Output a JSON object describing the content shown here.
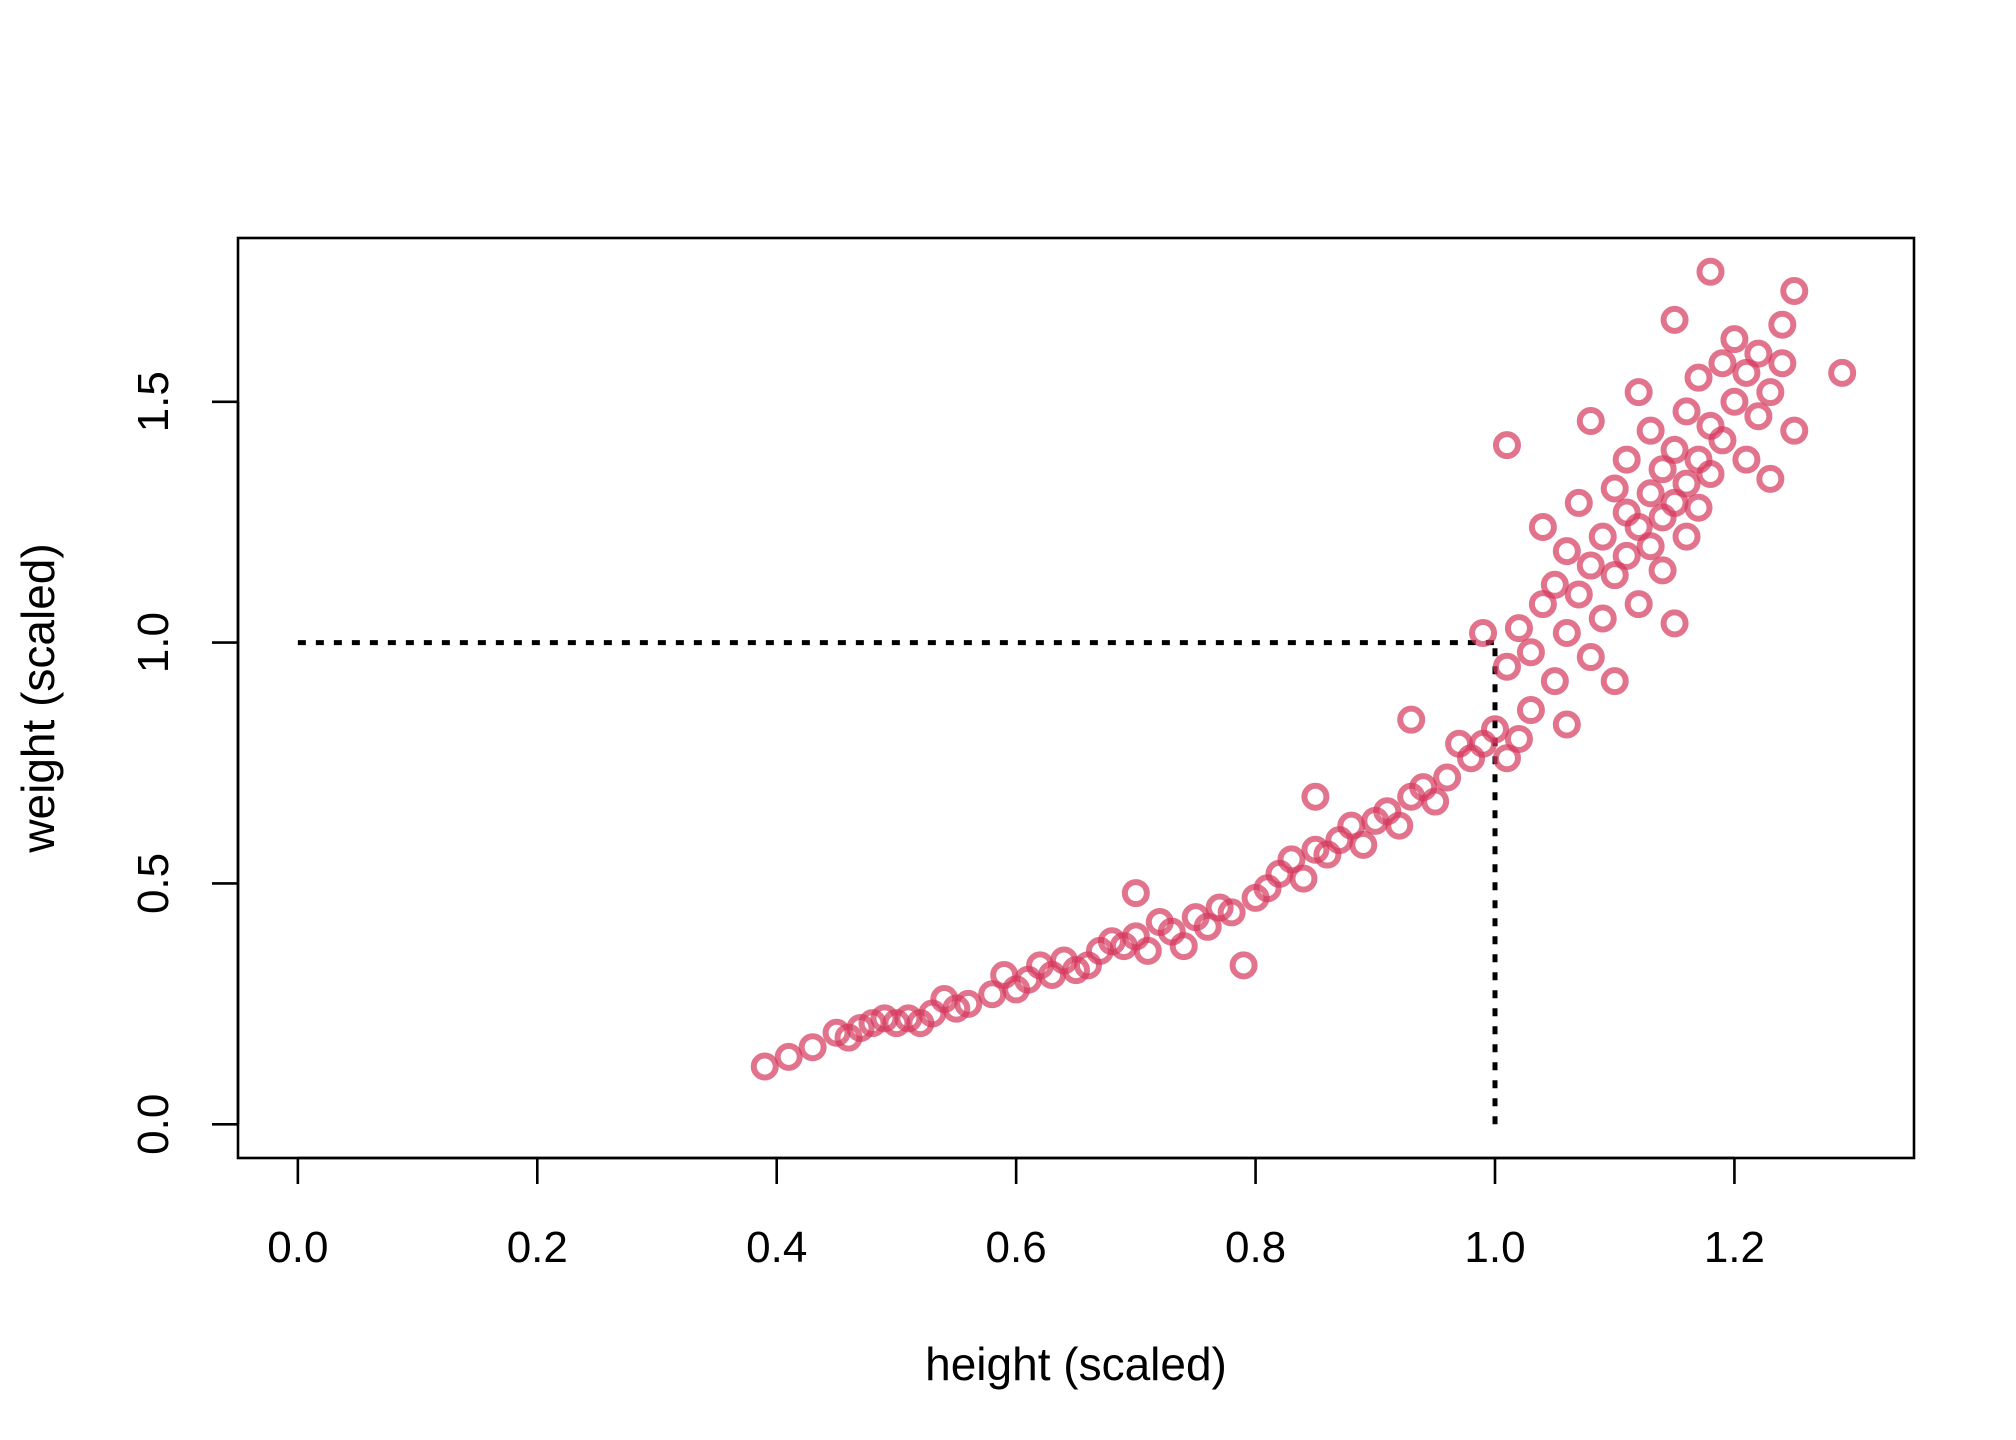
{
  "chart_data": {
    "type": "scatter",
    "title": "",
    "xlabel": "height (scaled)",
    "ylabel": "weight (scaled)",
    "xlim": [
      -0.05,
      1.35
    ],
    "ylim": [
      -0.07,
      1.84
    ],
    "x_ticks": [
      "0.0",
      "0.2",
      "0.4",
      "0.6",
      "0.8",
      "1.0",
      "1.2"
    ],
    "y_ticks": [
      "0.0",
      "0.5",
      "1.0",
      "1.5"
    ],
    "grid": false,
    "legend": "none",
    "point_color": "#D6375D",
    "reference_lines": [
      {
        "from": [
          0.0,
          1.0
        ],
        "to": [
          1.0,
          1.0
        ],
        "style": "dotted"
      },
      {
        "from": [
          1.0,
          0.0
        ],
        "to": [
          1.0,
          1.0
        ],
        "style": "dotted"
      }
    ],
    "points": [
      [
        0.39,
        0.12
      ],
      [
        0.41,
        0.14
      ],
      [
        0.43,
        0.16
      ],
      [
        0.45,
        0.19
      ],
      [
        0.46,
        0.18
      ],
      [
        0.47,
        0.2
      ],
      [
        0.48,
        0.21
      ],
      [
        0.49,
        0.22
      ],
      [
        0.5,
        0.21
      ],
      [
        0.51,
        0.22
      ],
      [
        0.52,
        0.21
      ],
      [
        0.53,
        0.23
      ],
      [
        0.54,
        0.26
      ],
      [
        0.55,
        0.24
      ],
      [
        0.56,
        0.25
      ],
      [
        0.58,
        0.27
      ],
      [
        0.59,
        0.31
      ],
      [
        0.6,
        0.28
      ],
      [
        0.61,
        0.3
      ],
      [
        0.62,
        0.33
      ],
      [
        0.63,
        0.31
      ],
      [
        0.64,
        0.34
      ],
      [
        0.65,
        0.32
      ],
      [
        0.66,
        0.33
      ],
      [
        0.67,
        0.36
      ],
      [
        0.68,
        0.38
      ],
      [
        0.69,
        0.37
      ],
      [
        0.7,
        0.39
      ],
      [
        0.7,
        0.48
      ],
      [
        0.71,
        0.36
      ],
      [
        0.72,
        0.42
      ],
      [
        0.73,
        0.4
      ],
      [
        0.74,
        0.37
      ],
      [
        0.75,
        0.43
      ],
      [
        0.76,
        0.41
      ],
      [
        0.77,
        0.45
      ],
      [
        0.78,
        0.44
      ],
      [
        0.79,
        0.33
      ],
      [
        0.8,
        0.47
      ],
      [
        0.81,
        0.49
      ],
      [
        0.82,
        0.52
      ],
      [
        0.83,
        0.55
      ],
      [
        0.84,
        0.51
      ],
      [
        0.85,
        0.57
      ],
      [
        0.85,
        0.68
      ],
      [
        0.86,
        0.56
      ],
      [
        0.87,
        0.59
      ],
      [
        0.88,
        0.62
      ],
      [
        0.89,
        0.58
      ],
      [
        0.9,
        0.63
      ],
      [
        0.91,
        0.65
      ],
      [
        0.92,
        0.62
      ],
      [
        0.93,
        0.68
      ],
      [
        0.93,
        0.84
      ],
      [
        0.94,
        0.7
      ],
      [
        0.95,
        0.67
      ],
      [
        0.96,
        0.72
      ],
      [
        0.97,
        0.79
      ],
      [
        0.98,
        0.76
      ],
      [
        0.99,
        0.79
      ],
      [
        0.99,
        1.02
      ],
      [
        1.0,
        0.82
      ],
      [
        1.01,
        0.76
      ],
      [
        1.01,
        0.95
      ],
      [
        1.02,
        0.8
      ],
      [
        1.02,
        1.03
      ],
      [
        1.01,
        1.41
      ],
      [
        1.03,
        0.86
      ],
      [
        1.03,
        0.98
      ],
      [
        1.04,
        1.08
      ],
      [
        1.04,
        1.24
      ],
      [
        1.05,
        0.92
      ],
      [
        1.05,
        1.12
      ],
      [
        1.06,
        1.02
      ],
      [
        1.06,
        1.19
      ],
      [
        1.06,
        0.83
      ],
      [
        1.07,
        1.29
      ],
      [
        1.07,
        1.1
      ],
      [
        1.08,
        1.16
      ],
      [
        1.08,
        1.46
      ],
      [
        1.08,
        0.97
      ],
      [
        1.09,
        1.22
      ],
      [
        1.09,
        1.05
      ],
      [
        1.1,
        1.32
      ],
      [
        1.1,
        1.14
      ],
      [
        1.1,
        0.92
      ],
      [
        1.11,
        1.27
      ],
      [
        1.11,
        1.18
      ],
      [
        1.11,
        1.38
      ],
      [
        1.12,
        1.24
      ],
      [
        1.12,
        1.08
      ],
      [
        1.12,
        1.52
      ],
      [
        1.13,
        1.31
      ],
      [
        1.13,
        1.2
      ],
      [
        1.13,
        1.44
      ],
      [
        1.14,
        1.36
      ],
      [
        1.14,
        1.26
      ],
      [
        1.14,
        1.15
      ],
      [
        1.15,
        1.4
      ],
      [
        1.15,
        1.29
      ],
      [
        1.15,
        1.04
      ],
      [
        1.15,
        1.67
      ],
      [
        1.16,
        1.48
      ],
      [
        1.16,
        1.33
      ],
      [
        1.16,
        1.22
      ],
      [
        1.17,
        1.55
      ],
      [
        1.17,
        1.38
      ],
      [
        1.17,
        1.28
      ],
      [
        1.18,
        1.45
      ],
      [
        1.18,
        1.35
      ],
      [
        1.18,
        1.77
      ],
      [
        1.19,
        1.58
      ],
      [
        1.19,
        1.42
      ],
      [
        1.2,
        1.63
      ],
      [
        1.2,
        1.5
      ],
      [
        1.21,
        1.56
      ],
      [
        1.21,
        1.38
      ],
      [
        1.22,
        1.6
      ],
      [
        1.22,
        1.47
      ],
      [
        1.23,
        1.52
      ],
      [
        1.23,
        1.34
      ],
      [
        1.24,
        1.66
      ],
      [
        1.24,
        1.58
      ],
      [
        1.25,
        1.73
      ],
      [
        1.25,
        1.44
      ],
      [
        1.29,
        1.56
      ]
    ]
  }
}
